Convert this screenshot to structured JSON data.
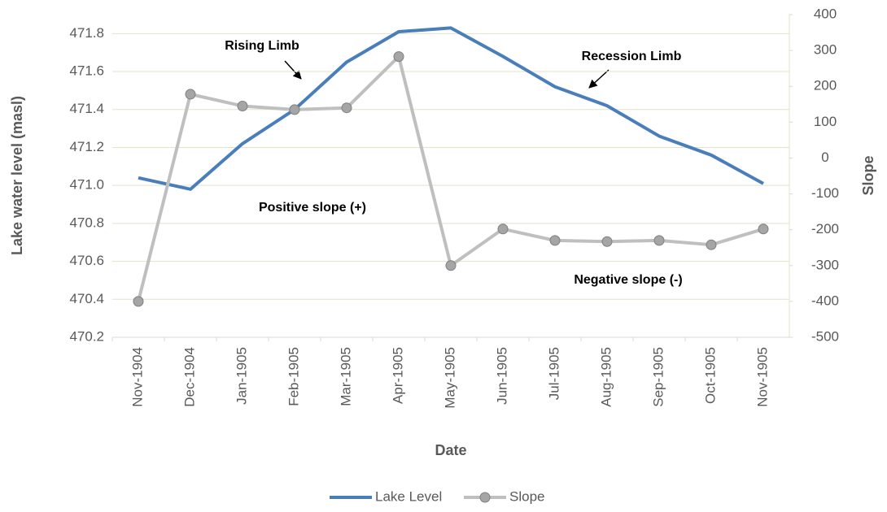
{
  "chart_data": {
    "type": "line",
    "categories": [
      "Nov-1904",
      "Dec-1904",
      "Jan-1905",
      "Feb-1905",
      "Mar-1905",
      "Apr-1905",
      "May-1905",
      "Jun-1905",
      "Jul-1905",
      "Aug-1905",
      "Sep-1905",
      "Oct-1905",
      "Nov-1905"
    ],
    "series": [
      {
        "name": "Lake Level",
        "color": "#4a7ebb",
        "values": [
          471.04,
          470.98,
          471.22,
          471.4,
          471.65,
          471.81,
          471.83,
          471.68,
          471.52,
          471.42,
          471.26,
          471.16,
          471.01
        ]
      },
      {
        "name": "Slope",
        "color": "#bfbfbf",
        "axis": "y2",
        "marker": "circle",
        "values": [
          -400,
          178,
          145,
          135,
          140,
          283,
          -300,
          -198,
          -230,
          -233,
          -230,
          -242,
          -198
        ]
      }
    ],
    "xlabel": "Date",
    "ylabel": "Lake water level (masl)",
    "y2label": "Slope",
    "ylim": [
      470.2,
      471.9
    ],
    "yticks": [
      470.2,
      470.4,
      470.6,
      470.8,
      {
        "value": 471,
        "label": "471.0"
      },
      471.2,
      471.4,
      471.6,
      471.8
    ],
    "y2lim": [
      -500,
      400
    ],
    "y2ticks": [
      -500,
      -400,
      -300,
      -200,
      -100,
      0,
      100,
      200,
      300,
      400
    ],
    "grid": true,
    "legend": "bottom",
    "annotations": [
      "Rising Limb",
      "Recession Limb",
      "Positive slope (+)",
      "Negative slope (-)"
    ]
  }
}
